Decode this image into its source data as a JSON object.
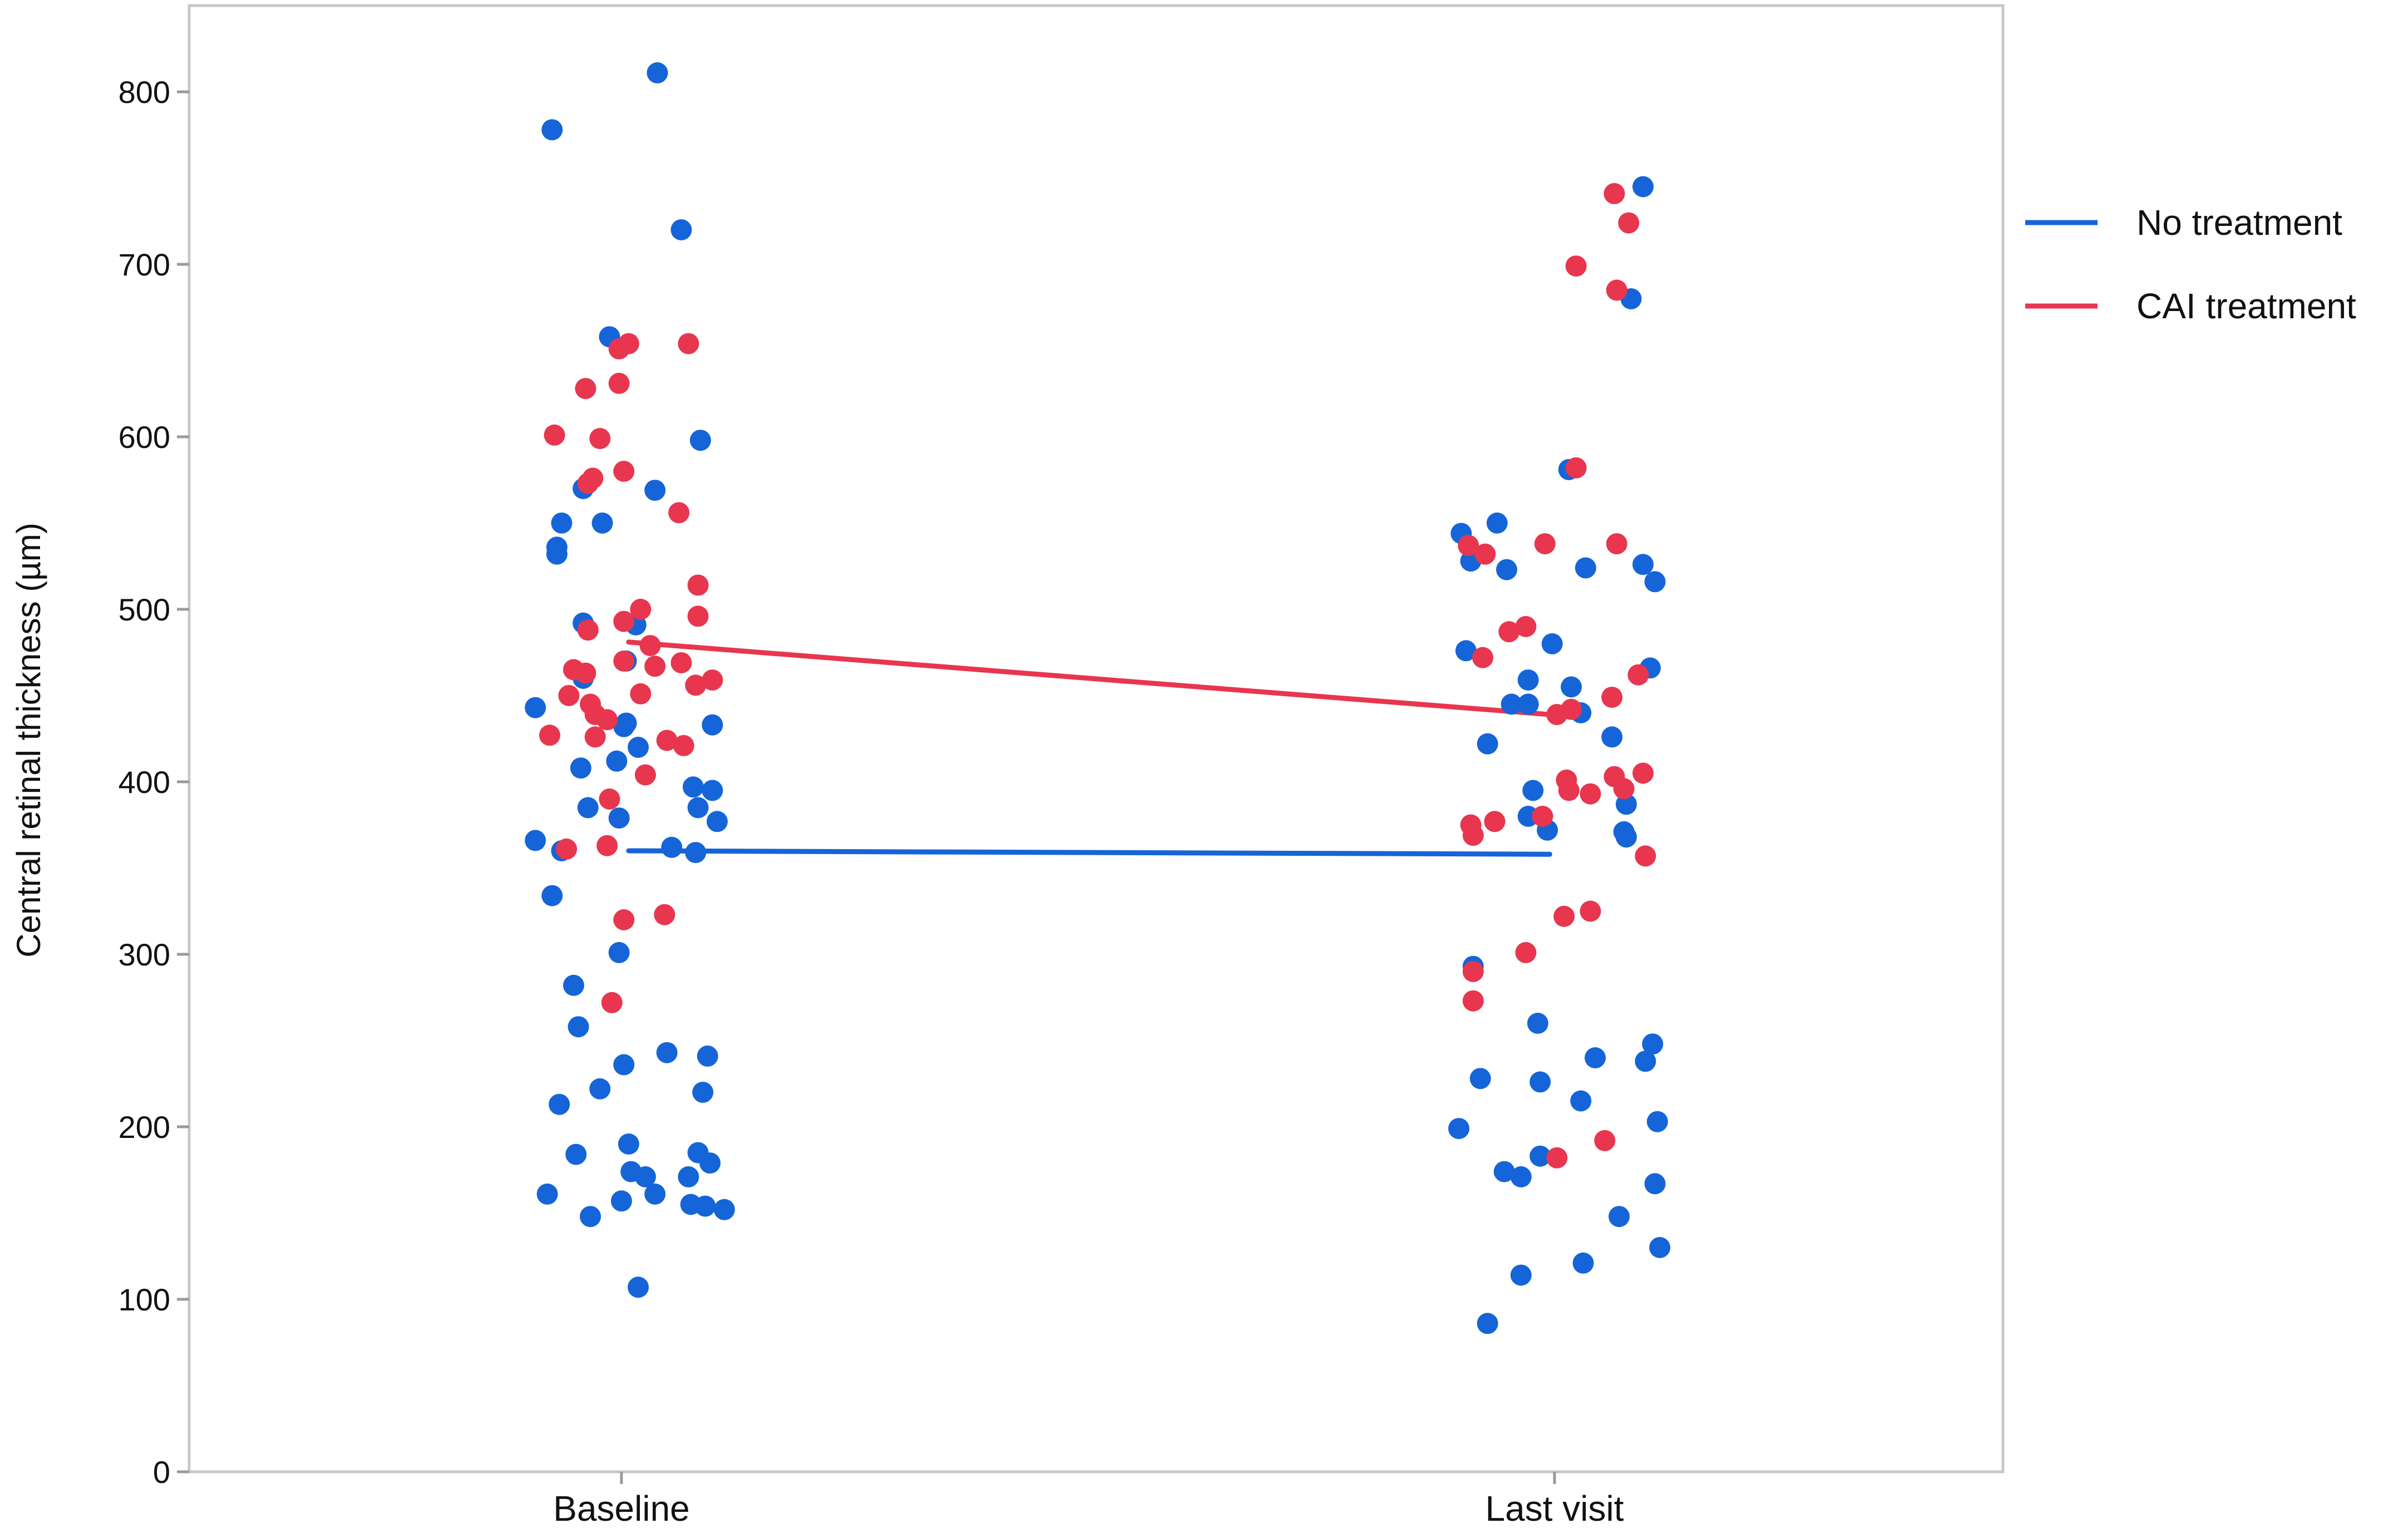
{
  "chart_data": {
    "type": "scatter",
    "title": "",
    "xlabel": "",
    "ylabel": "Central retinal thickness (µm)",
    "categories": [
      "Baseline",
      "Last visit"
    ],
    "ylim": [
      0,
      850
    ],
    "yticks": [
      0,
      100,
      200,
      300,
      400,
      500,
      600,
      700,
      800
    ],
    "grid": false,
    "legend_position": "right",
    "series": [
      {
        "name": "No treatment",
        "color": "#1565d8",
        "trend": [
          {
            "x": "Baseline",
            "y": 360
          },
          {
            "x": "Last visit",
            "y": 358
          }
        ],
        "points": [
          {
            "x": "Baseline",
            "jitter": -0.36,
            "y": 443
          },
          {
            "x": "Baseline",
            "jitter": -0.36,
            "y": 366
          },
          {
            "x": "Baseline",
            "jitter": -0.29,
            "y": 778
          },
          {
            "x": "Baseline",
            "jitter": -0.29,
            "y": 334
          },
          {
            "x": "Baseline",
            "jitter": -0.31,
            "y": 161
          },
          {
            "x": "Baseline",
            "jitter": -0.27,
            "y": 536
          },
          {
            "x": "Baseline",
            "jitter": -0.27,
            "y": 532
          },
          {
            "x": "Baseline",
            "jitter": -0.25,
            "y": 550
          },
          {
            "x": "Baseline",
            "jitter": -0.25,
            "y": 360
          },
          {
            "x": "Baseline",
            "jitter": -0.26,
            "y": 213
          },
          {
            "x": "Baseline",
            "jitter": -0.2,
            "y": 282
          },
          {
            "x": "Baseline",
            "jitter": -0.19,
            "y": 184
          },
          {
            "x": "Baseline",
            "jitter": -0.18,
            "y": 258
          },
          {
            "x": "Baseline",
            "jitter": -0.16,
            "y": 570
          },
          {
            "x": "Baseline",
            "jitter": -0.16,
            "y": 492
          },
          {
            "x": "Baseline",
            "jitter": -0.16,
            "y": 460
          },
          {
            "x": "Baseline",
            "jitter": -0.17,
            "y": 408
          },
          {
            "x": "Baseline",
            "jitter": -0.14,
            "y": 385
          },
          {
            "x": "Baseline",
            "jitter": -0.13,
            "y": 148
          },
          {
            "x": "Baseline",
            "jitter": -0.09,
            "y": 222
          },
          {
            "x": "Baseline",
            "jitter": -0.08,
            "y": 550
          },
          {
            "x": "Baseline",
            "jitter": -0.05,
            "y": 658
          },
          {
            "x": "Baseline",
            "jitter": -0.02,
            "y": 412
          },
          {
            "x": "Baseline",
            "jitter": -0.01,
            "y": 379
          },
          {
            "x": "Baseline",
            "jitter": -0.01,
            "y": 301
          },
          {
            "x": "Baseline",
            "jitter": 0.01,
            "y": 432
          },
          {
            "x": "Baseline",
            "jitter": 0.01,
            "y": 236
          },
          {
            "x": "Baseline",
            "jitter": 0.0,
            "y": 157
          },
          {
            "x": "Baseline",
            "jitter": 0.02,
            "y": 470
          },
          {
            "x": "Baseline",
            "jitter": 0.02,
            "y": 434
          },
          {
            "x": "Baseline",
            "jitter": 0.03,
            "y": 190
          },
          {
            "x": "Baseline",
            "jitter": 0.04,
            "y": 174
          },
          {
            "x": "Baseline",
            "jitter": 0.06,
            "y": 491
          },
          {
            "x": "Baseline",
            "jitter": 0.07,
            "y": 420
          },
          {
            "x": "Baseline",
            "jitter": 0.07,
            "y": 107
          },
          {
            "x": "Baseline",
            "jitter": 0.1,
            "y": 171
          },
          {
            "x": "Baseline",
            "jitter": 0.14,
            "y": 569
          },
          {
            "x": "Baseline",
            "jitter": 0.15,
            "y": 811
          },
          {
            "x": "Baseline",
            "jitter": 0.14,
            "y": 161
          },
          {
            "x": "Baseline",
            "jitter": 0.19,
            "y": 243
          },
          {
            "x": "Baseline",
            "jitter": 0.21,
            "y": 362
          },
          {
            "x": "Baseline",
            "jitter": 0.25,
            "y": 720
          },
          {
            "x": "Baseline",
            "jitter": 0.28,
            "y": 171
          },
          {
            "x": "Baseline",
            "jitter": 0.29,
            "y": 155
          },
          {
            "x": "Baseline",
            "jitter": 0.3,
            "y": 397
          },
          {
            "x": "Baseline",
            "jitter": 0.31,
            "y": 359
          },
          {
            "x": "Baseline",
            "jitter": 0.32,
            "y": 385
          },
          {
            "x": "Baseline",
            "jitter": 0.32,
            "y": 185
          },
          {
            "x": "Baseline",
            "jitter": 0.33,
            "y": 598
          },
          {
            "x": "Baseline",
            "jitter": 0.34,
            "y": 220
          },
          {
            "x": "Baseline",
            "jitter": 0.35,
            "y": 154
          },
          {
            "x": "Baseline",
            "jitter": 0.36,
            "y": 241
          },
          {
            "x": "Baseline",
            "jitter": 0.37,
            "y": 179
          },
          {
            "x": "Baseline",
            "jitter": 0.38,
            "y": 433
          },
          {
            "x": "Baseline",
            "jitter": 0.38,
            "y": 395
          },
          {
            "x": "Baseline",
            "jitter": 0.4,
            "y": 377
          },
          {
            "x": "Baseline",
            "jitter": 0.43,
            "y": 152
          },
          {
            "x": "Last visit",
            "jitter": -0.39,
            "y": 544
          },
          {
            "x": "Last visit",
            "jitter": -0.4,
            "y": 199
          },
          {
            "x": "Last visit",
            "jitter": -0.37,
            "y": 476
          },
          {
            "x": "Last visit",
            "jitter": -0.35,
            "y": 528
          },
          {
            "x": "Last visit",
            "jitter": -0.34,
            "y": 293
          },
          {
            "x": "Last visit",
            "jitter": -0.31,
            "y": 228
          },
          {
            "x": "Last visit",
            "jitter": -0.28,
            "y": 422
          },
          {
            "x": "Last visit",
            "jitter": -0.28,
            "y": 86
          },
          {
            "x": "Last visit",
            "jitter": -0.24,
            "y": 550
          },
          {
            "x": "Last visit",
            "jitter": -0.21,
            "y": 174
          },
          {
            "x": "Last visit",
            "jitter": -0.2,
            "y": 523
          },
          {
            "x": "Last visit",
            "jitter": -0.18,
            "y": 445
          },
          {
            "x": "Last visit",
            "jitter": -0.14,
            "y": 171
          },
          {
            "x": "Last visit",
            "jitter": -0.14,
            "y": 114
          },
          {
            "x": "Last visit",
            "jitter": -0.11,
            "y": 459
          },
          {
            "x": "Last visit",
            "jitter": -0.11,
            "y": 445
          },
          {
            "x": "Last visit",
            "jitter": -0.11,
            "y": 380
          },
          {
            "x": "Last visit",
            "jitter": -0.09,
            "y": 395
          },
          {
            "x": "Last visit",
            "jitter": -0.07,
            "y": 260
          },
          {
            "x": "Last visit",
            "jitter": -0.06,
            "y": 226
          },
          {
            "x": "Last visit",
            "jitter": -0.06,
            "y": 183
          },
          {
            "x": "Last visit",
            "jitter": -0.03,
            "y": 372
          },
          {
            "x": "Last visit",
            "jitter": -0.01,
            "y": 480
          },
          {
            "x": "Last visit",
            "jitter": 0.06,
            "y": 581
          },
          {
            "x": "Last visit",
            "jitter": 0.07,
            "y": 455
          },
          {
            "x": "Last visit",
            "jitter": 0.11,
            "y": 440
          },
          {
            "x": "Last visit",
            "jitter": 0.13,
            "y": 524
          },
          {
            "x": "Last visit",
            "jitter": 0.11,
            "y": 215
          },
          {
            "x": "Last visit",
            "jitter": 0.12,
            "y": 121
          },
          {
            "x": "Last visit",
            "jitter": 0.17,
            "y": 240
          },
          {
            "x": "Last visit",
            "jitter": 0.24,
            "y": 426
          },
          {
            "x": "Last visit",
            "jitter": 0.27,
            "y": 148
          },
          {
            "x": "Last visit",
            "jitter": 0.3,
            "y": 387
          },
          {
            "x": "Last visit",
            "jitter": 0.29,
            "y": 371
          },
          {
            "x": "Last visit",
            "jitter": 0.3,
            "y": 368
          },
          {
            "x": "Last visit",
            "jitter": 0.32,
            "y": 680
          },
          {
            "x": "Last visit",
            "jitter": 0.37,
            "y": 745
          },
          {
            "x": "Last visit",
            "jitter": 0.37,
            "y": 526
          },
          {
            "x": "Last visit",
            "jitter": 0.38,
            "y": 238
          },
          {
            "x": "Last visit",
            "jitter": 0.4,
            "y": 466
          },
          {
            "x": "Last visit",
            "jitter": 0.42,
            "y": 516
          },
          {
            "x": "Last visit",
            "jitter": 0.41,
            "y": 248
          },
          {
            "x": "Last visit",
            "jitter": 0.43,
            "y": 203
          },
          {
            "x": "Last visit",
            "jitter": 0.42,
            "y": 167
          },
          {
            "x": "Last visit",
            "jitter": 0.44,
            "y": 130
          }
        ]
      },
      {
        "name": "CAI treatment",
        "color": "#e8364f",
        "trend": [
          {
            "x": "Baseline",
            "y": 481
          },
          {
            "x": "Last visit",
            "y": 439
          }
        ],
        "points": [
          {
            "x": "Baseline",
            "jitter": -0.3,
            "y": 427
          },
          {
            "x": "Baseline",
            "jitter": -0.28,
            "y": 601
          },
          {
            "x": "Baseline",
            "jitter": -0.23,
            "y": 361
          },
          {
            "x": "Baseline",
            "jitter": -0.22,
            "y": 450
          },
          {
            "x": "Baseline",
            "jitter": -0.2,
            "y": 465
          },
          {
            "x": "Baseline",
            "jitter": -0.15,
            "y": 628
          },
          {
            "x": "Baseline",
            "jitter": -0.15,
            "y": 463
          },
          {
            "x": "Baseline",
            "jitter": -0.14,
            "y": 488
          },
          {
            "x": "Baseline",
            "jitter": -0.14,
            "y": 573
          },
          {
            "x": "Baseline",
            "jitter": -0.12,
            "y": 576
          },
          {
            "x": "Baseline",
            "jitter": -0.13,
            "y": 445
          },
          {
            "x": "Baseline",
            "jitter": -0.11,
            "y": 439
          },
          {
            "x": "Baseline",
            "jitter": -0.11,
            "y": 426
          },
          {
            "x": "Baseline",
            "jitter": -0.09,
            "y": 599
          },
          {
            "x": "Baseline",
            "jitter": -0.06,
            "y": 436
          },
          {
            "x": "Baseline",
            "jitter": -0.06,
            "y": 363
          },
          {
            "x": "Baseline",
            "jitter": -0.05,
            "y": 390
          },
          {
            "x": "Baseline",
            "jitter": -0.04,
            "y": 272
          },
          {
            "x": "Baseline",
            "jitter": -0.01,
            "y": 651
          },
          {
            "x": "Baseline",
            "jitter": -0.01,
            "y": 631
          },
          {
            "x": "Baseline",
            "jitter": 0.01,
            "y": 580
          },
          {
            "x": "Baseline",
            "jitter": 0.01,
            "y": 493
          },
          {
            "x": "Baseline",
            "jitter": 0.01,
            "y": 470
          },
          {
            "x": "Baseline",
            "jitter": 0.01,
            "y": 320
          },
          {
            "x": "Baseline",
            "jitter": 0.03,
            "y": 654
          },
          {
            "x": "Baseline",
            "jitter": 0.08,
            "y": 500
          },
          {
            "x": "Baseline",
            "jitter": 0.08,
            "y": 451
          },
          {
            "x": "Baseline",
            "jitter": 0.1,
            "y": 404
          },
          {
            "x": "Baseline",
            "jitter": 0.12,
            "y": 479
          },
          {
            "x": "Baseline",
            "jitter": 0.14,
            "y": 467
          },
          {
            "x": "Baseline",
            "jitter": 0.19,
            "y": 424
          },
          {
            "x": "Baseline",
            "jitter": 0.18,
            "y": 323
          },
          {
            "x": "Baseline",
            "jitter": 0.24,
            "y": 556
          },
          {
            "x": "Baseline",
            "jitter": 0.25,
            "y": 469
          },
          {
            "x": "Baseline",
            "jitter": 0.26,
            "y": 421
          },
          {
            "x": "Baseline",
            "jitter": 0.28,
            "y": 654
          },
          {
            "x": "Baseline",
            "jitter": 0.31,
            "y": 456
          },
          {
            "x": "Baseline",
            "jitter": 0.32,
            "y": 514
          },
          {
            "x": "Baseline",
            "jitter": 0.32,
            "y": 496
          },
          {
            "x": "Baseline",
            "jitter": 0.38,
            "y": 459
          },
          {
            "x": "Last visit",
            "jitter": -0.36,
            "y": 537
          },
          {
            "x": "Last visit",
            "jitter": -0.35,
            "y": 375
          },
          {
            "x": "Last visit",
            "jitter": -0.34,
            "y": 369
          },
          {
            "x": "Last visit",
            "jitter": -0.34,
            "y": 290
          },
          {
            "x": "Last visit",
            "jitter": -0.34,
            "y": 273
          },
          {
            "x": "Last visit",
            "jitter": -0.3,
            "y": 472
          },
          {
            "x": "Last visit",
            "jitter": -0.29,
            "y": 532
          },
          {
            "x": "Last visit",
            "jitter": -0.25,
            "y": 377
          },
          {
            "x": "Last visit",
            "jitter": -0.19,
            "y": 487
          },
          {
            "x": "Last visit",
            "jitter": -0.12,
            "y": 490
          },
          {
            "x": "Last visit",
            "jitter": -0.12,
            "y": 301
          },
          {
            "x": "Last visit",
            "jitter": -0.04,
            "y": 538
          },
          {
            "x": "Last visit",
            "jitter": -0.05,
            "y": 380
          },
          {
            "x": "Last visit",
            "jitter": 0.01,
            "y": 439
          },
          {
            "x": "Last visit",
            "jitter": 0.01,
            "y": 182
          },
          {
            "x": "Last visit",
            "jitter": 0.04,
            "y": 322
          },
          {
            "x": "Last visit",
            "jitter": 0.05,
            "y": 401
          },
          {
            "x": "Last visit",
            "jitter": 0.06,
            "y": 395
          },
          {
            "x": "Last visit",
            "jitter": 0.07,
            "y": 442
          },
          {
            "x": "Last visit",
            "jitter": 0.09,
            "y": 699
          },
          {
            "x": "Last visit",
            "jitter": 0.09,
            "y": 582
          },
          {
            "x": "Last visit",
            "jitter": 0.15,
            "y": 393
          },
          {
            "x": "Last visit",
            "jitter": 0.15,
            "y": 325
          },
          {
            "x": "Last visit",
            "jitter": 0.21,
            "y": 192
          },
          {
            "x": "Last visit",
            "jitter": 0.24,
            "y": 449
          },
          {
            "x": "Last visit",
            "jitter": 0.25,
            "y": 741
          },
          {
            "x": "Last visit",
            "jitter": 0.25,
            "y": 403
          },
          {
            "x": "Last visit",
            "jitter": 0.26,
            "y": 685
          },
          {
            "x": "Last visit",
            "jitter": 0.26,
            "y": 538
          },
          {
            "x": "Last visit",
            "jitter": 0.29,
            "y": 396
          },
          {
            "x": "Last visit",
            "jitter": 0.31,
            "y": 724
          },
          {
            "x": "Last visit",
            "jitter": 0.35,
            "y": 462
          },
          {
            "x": "Last visit",
            "jitter": 0.37,
            "y": 405
          },
          {
            "x": "Last visit",
            "jitter": 0.38,
            "y": 357
          }
        ]
      }
    ]
  }
}
